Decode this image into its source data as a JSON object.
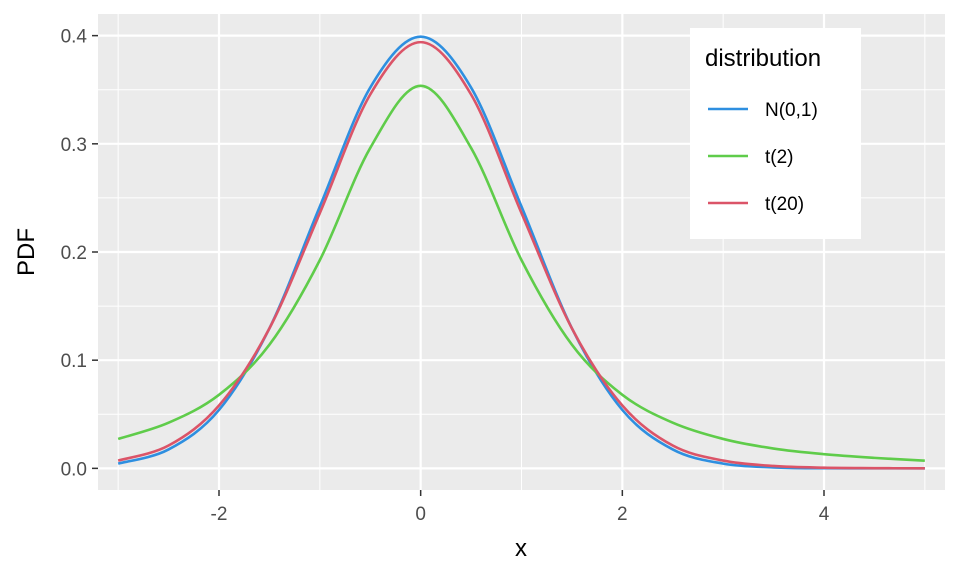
{
  "chart_data": {
    "type": "line",
    "xlabel": "x",
    "ylabel": "PDF",
    "xlim": [
      -3.2,
      5.2
    ],
    "ylim": [
      -0.02,
      0.42
    ],
    "x_ticks": [
      -2,
      0,
      2,
      4
    ],
    "x_tick_labels": [
      "-2",
      "0",
      "2",
      "4"
    ],
    "y_ticks": [
      0.0,
      0.1,
      0.2,
      0.3,
      0.4
    ],
    "y_tick_labels": [
      "0.0",
      "0.1",
      "0.2",
      "0.3",
      "0.4"
    ],
    "x_minor_ticks": [
      -3,
      -1,
      1,
      3,
      5
    ],
    "y_minor_ticks": [
      0.05,
      0.15,
      0.25,
      0.35
    ],
    "grid": true,
    "legend": {
      "title": "distribution",
      "position": "top-right",
      "entries": [
        "N(0,1)",
        "t(2)",
        "t(20)"
      ]
    },
    "x": [
      -3,
      -2.5,
      -2,
      -1.5,
      -1,
      -0.5,
      0,
      0.5,
      1,
      1.5,
      2,
      2.5,
      3,
      3.5,
      4,
      4.5,
      5
    ],
    "series": [
      {
        "name": "N(0,1)",
        "color": "#2e8fe0",
        "values": [
          0.0044,
          0.0175,
          0.054,
          0.1295,
          0.242,
          0.352,
          0.399,
          0.352,
          0.242,
          0.1295,
          0.054,
          0.0175,
          0.0044,
          0.0009,
          0.0001,
          0.0,
          0.0
        ]
      },
      {
        "name": "t(2)",
        "color": "#5fcc4a",
        "values": [
          0.0272,
          0.0422,
          0.068,
          0.1143,
          0.1925,
          0.2962,
          0.3536,
          0.2962,
          0.1925,
          0.1143,
          0.068,
          0.0422,
          0.0272,
          0.0183,
          0.0131,
          0.0097,
          0.0071
        ]
      },
      {
        "name": "t(20)",
        "color": "#db5468",
        "values": [
          0.0072,
          0.0211,
          0.0581,
          0.1294,
          0.236,
          0.3456,
          0.394,
          0.3456,
          0.236,
          0.1294,
          0.0581,
          0.0211,
          0.0072,
          0.0022,
          0.0006,
          0.0002,
          0.0
        ]
      }
    ]
  }
}
